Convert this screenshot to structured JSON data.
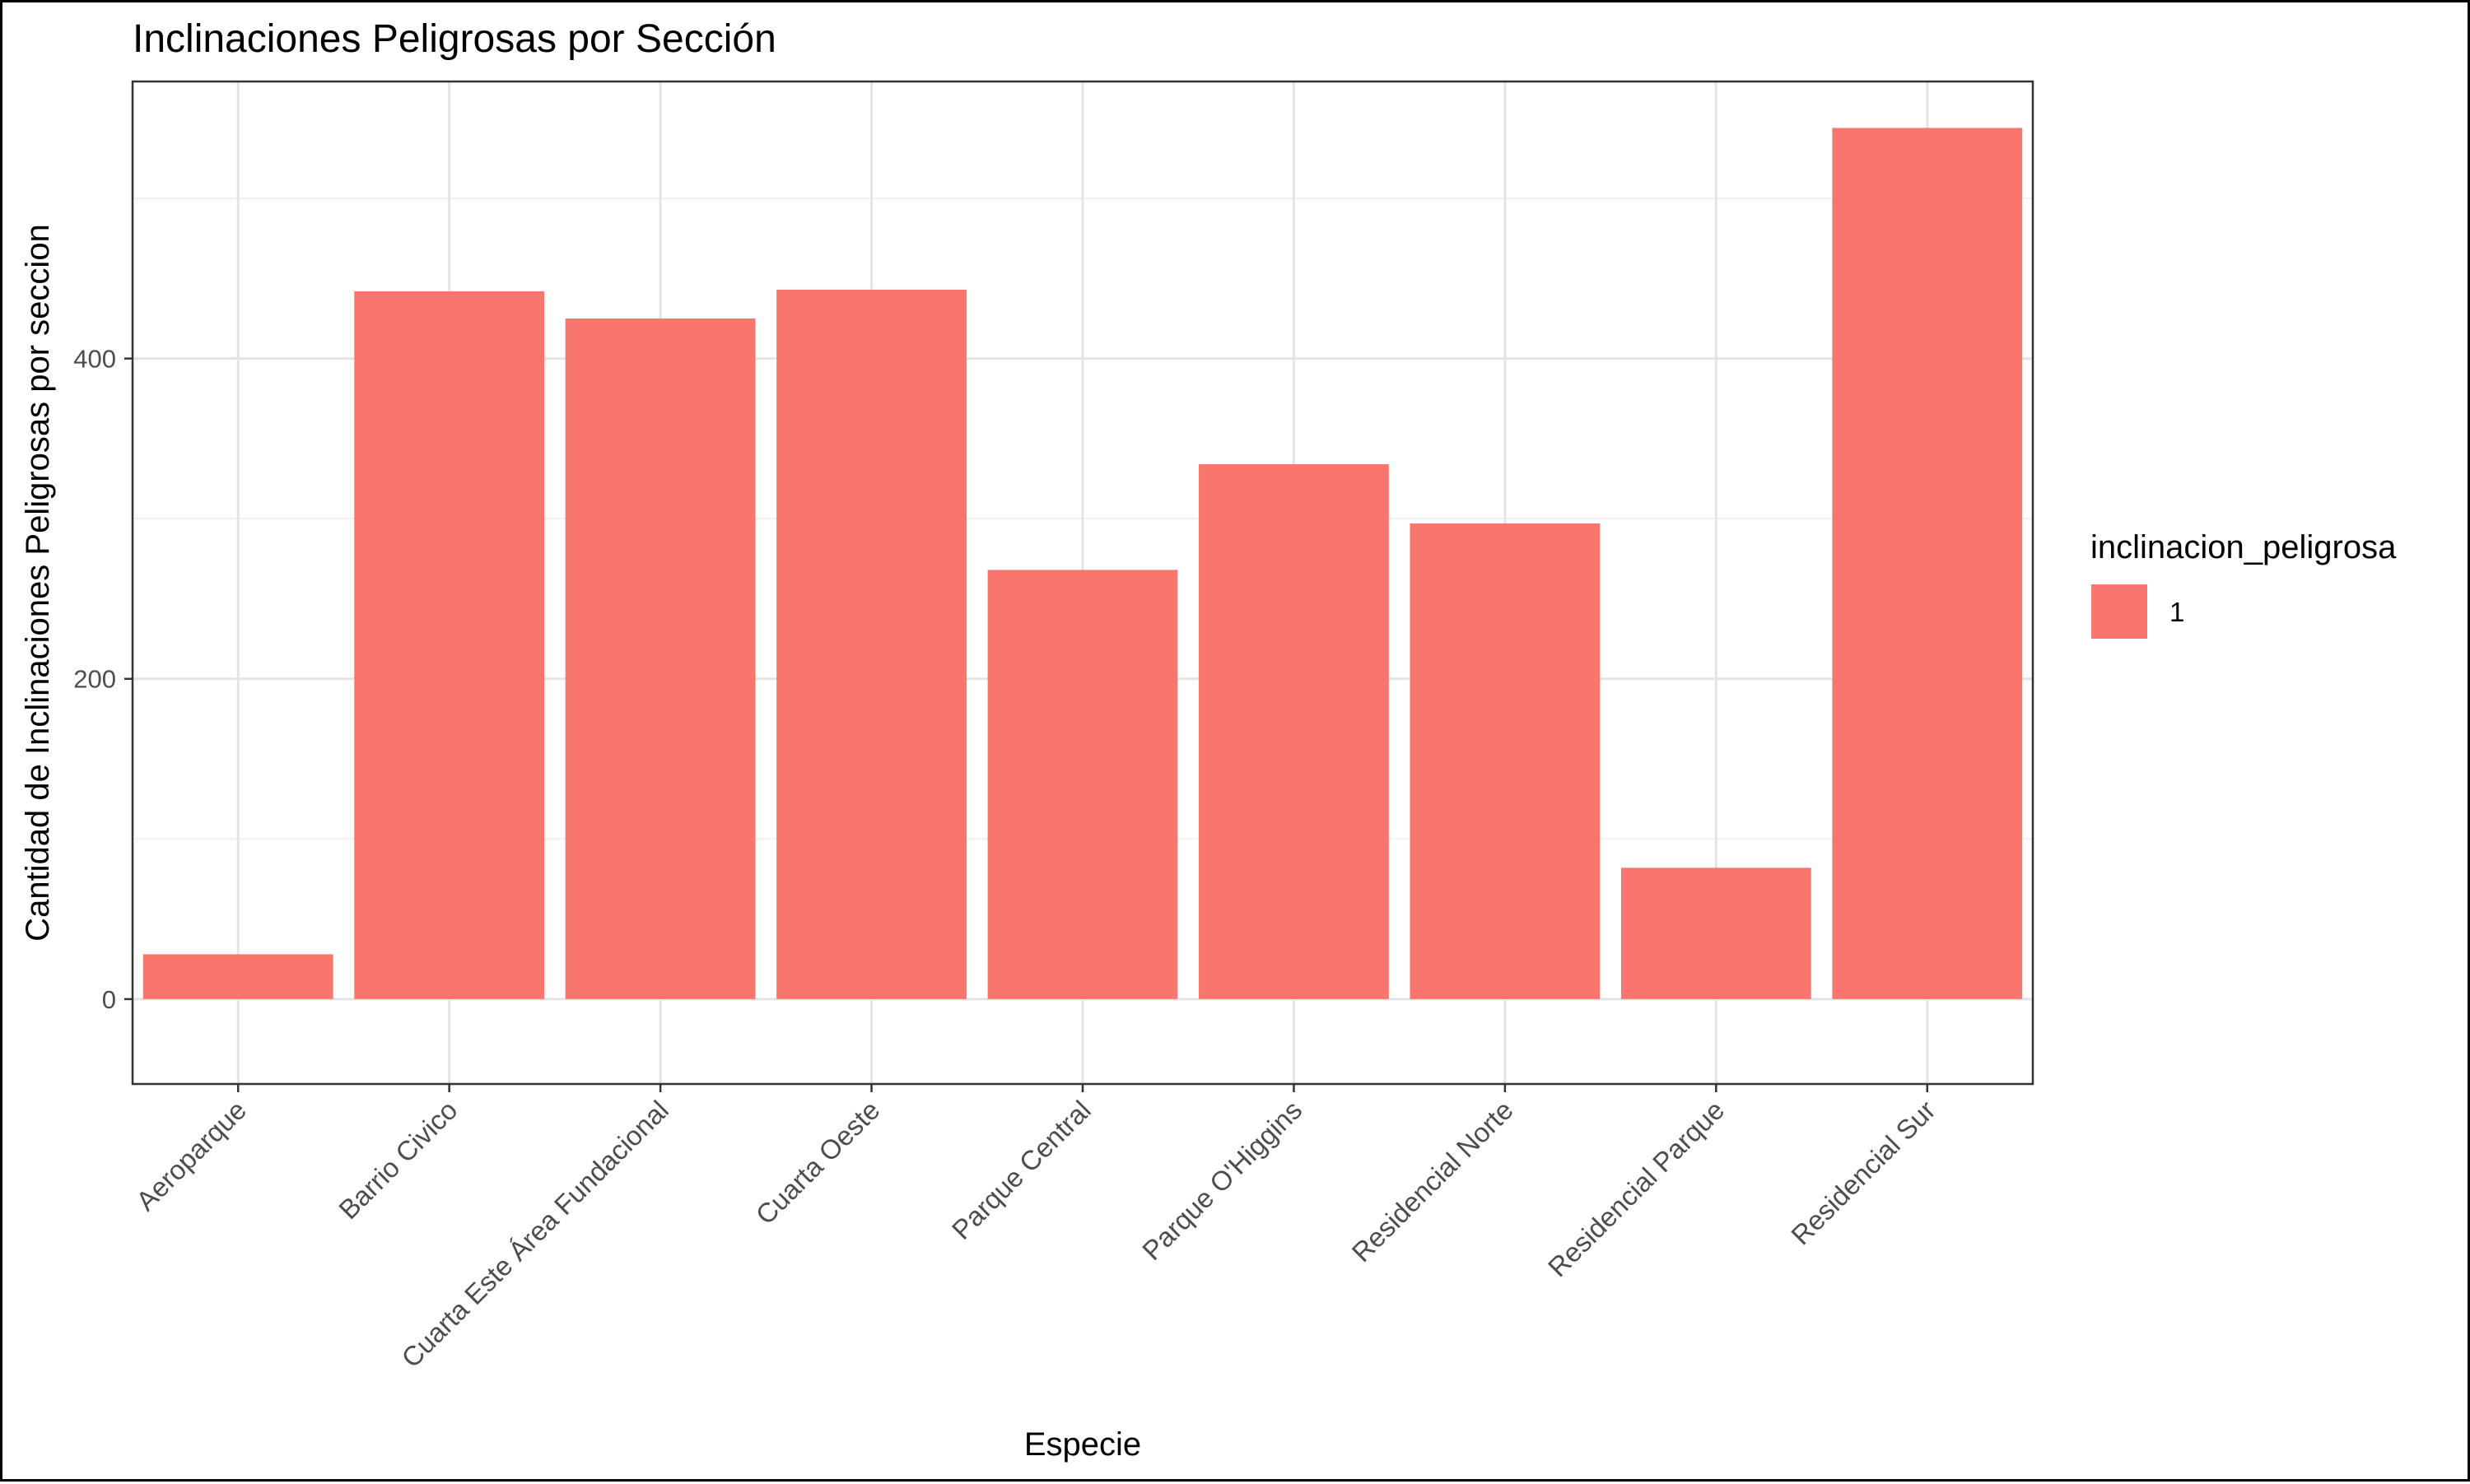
{
  "chart_data": {
    "type": "bar",
    "title": "Inclinaciones Peligrosas por Sección",
    "xlabel": "Especie",
    "ylabel": "Cantidad de Inclinaciones Peligrosas por seccion",
    "categories": [
      "Aeroparque",
      "Barrio Civico",
      "Cuarta Este Área Fundacional",
      "Cuarta Oeste",
      "Parque Central",
      "Parque O'Higgins",
      "Residencial Norte",
      "Residencial Parque",
      "Residencial Sur"
    ],
    "series": [
      {
        "name": "1",
        "values": [
          28,
          442,
          425,
          443,
          268,
          334,
          297,
          82,
          544
        ]
      }
    ],
    "y_ticks": [
      0,
      200,
      400
    ],
    "y_minor_ticks": [
      100,
      300,
      500
    ],
    "ylim": [
      -53,
      573
    ],
    "legend_title": "inclinacion_peligrosa",
    "legend_position": "right",
    "grid": true,
    "bar_color": "#F8766D"
  }
}
